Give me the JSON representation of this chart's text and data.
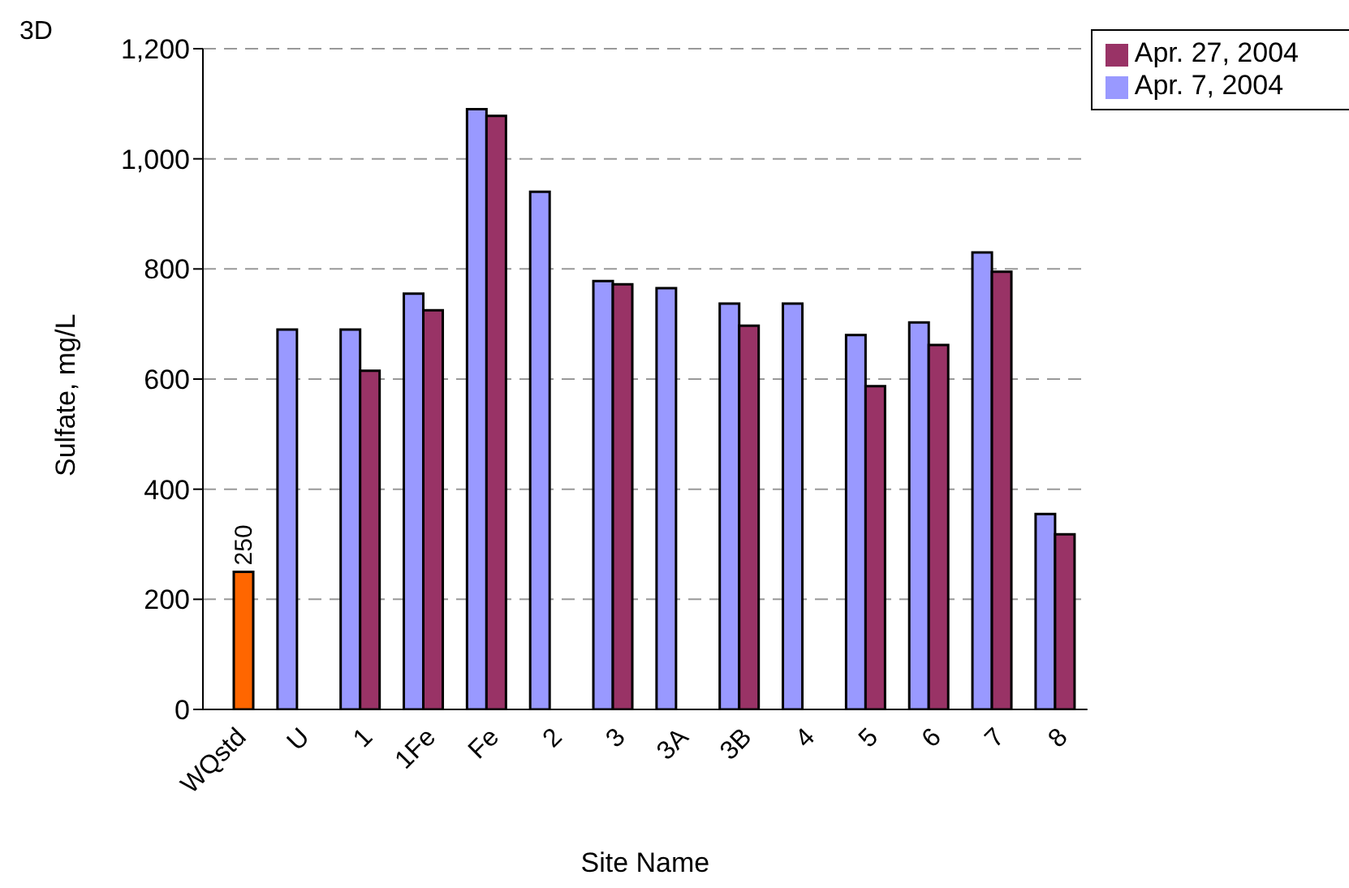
{
  "chart_data": {
    "type": "bar",
    "xlabel": "Site Name",
    "ylabel": "Sulfate, mg/L",
    "annotations": [
      "3D"
    ],
    "categories": [
      "WQstd",
      "U",
      "1",
      "1Fe",
      "Fe",
      "2",
      "3",
      "3A",
      "3B",
      "4",
      "5",
      "6",
      "7",
      "8"
    ],
    "series": [
      {
        "name": "Apr. 7, 2004",
        "color": "#9999ff",
        "values": [
          null,
          690,
          690,
          755,
          1090,
          940,
          778,
          765,
          737,
          737,
          680,
          703,
          830,
          355
        ]
      },
      {
        "name": "Apr. 27, 2004",
        "color": "#993366",
        "colors": [
          "#ff6600",
          "#993366",
          "#993366",
          "#993366",
          "#993366",
          "#993366",
          "#993366",
          "#993366",
          "#993366",
          "#993366",
          "#993366",
          "#993366",
          "#993366",
          "#993366"
        ],
        "values": [
          250,
          null,
          615,
          725,
          1078,
          null,
          772,
          null,
          697,
          null,
          587,
          662,
          795,
          318
        ],
        "value_labels": [
          "250",
          null,
          null,
          null,
          null,
          null,
          null,
          null,
          null,
          null,
          null,
          null,
          null,
          null
        ]
      }
    ],
    "ylim": [
      0,
      1200
    ],
    "yticks": [
      0,
      200,
      400,
      600,
      800,
      {
        "value": 1000,
        "label": "1,000"
      },
      {
        "value": 1200,
        "label": "1,200"
      }
    ],
    "grid": "y",
    "legend": "top right"
  }
}
